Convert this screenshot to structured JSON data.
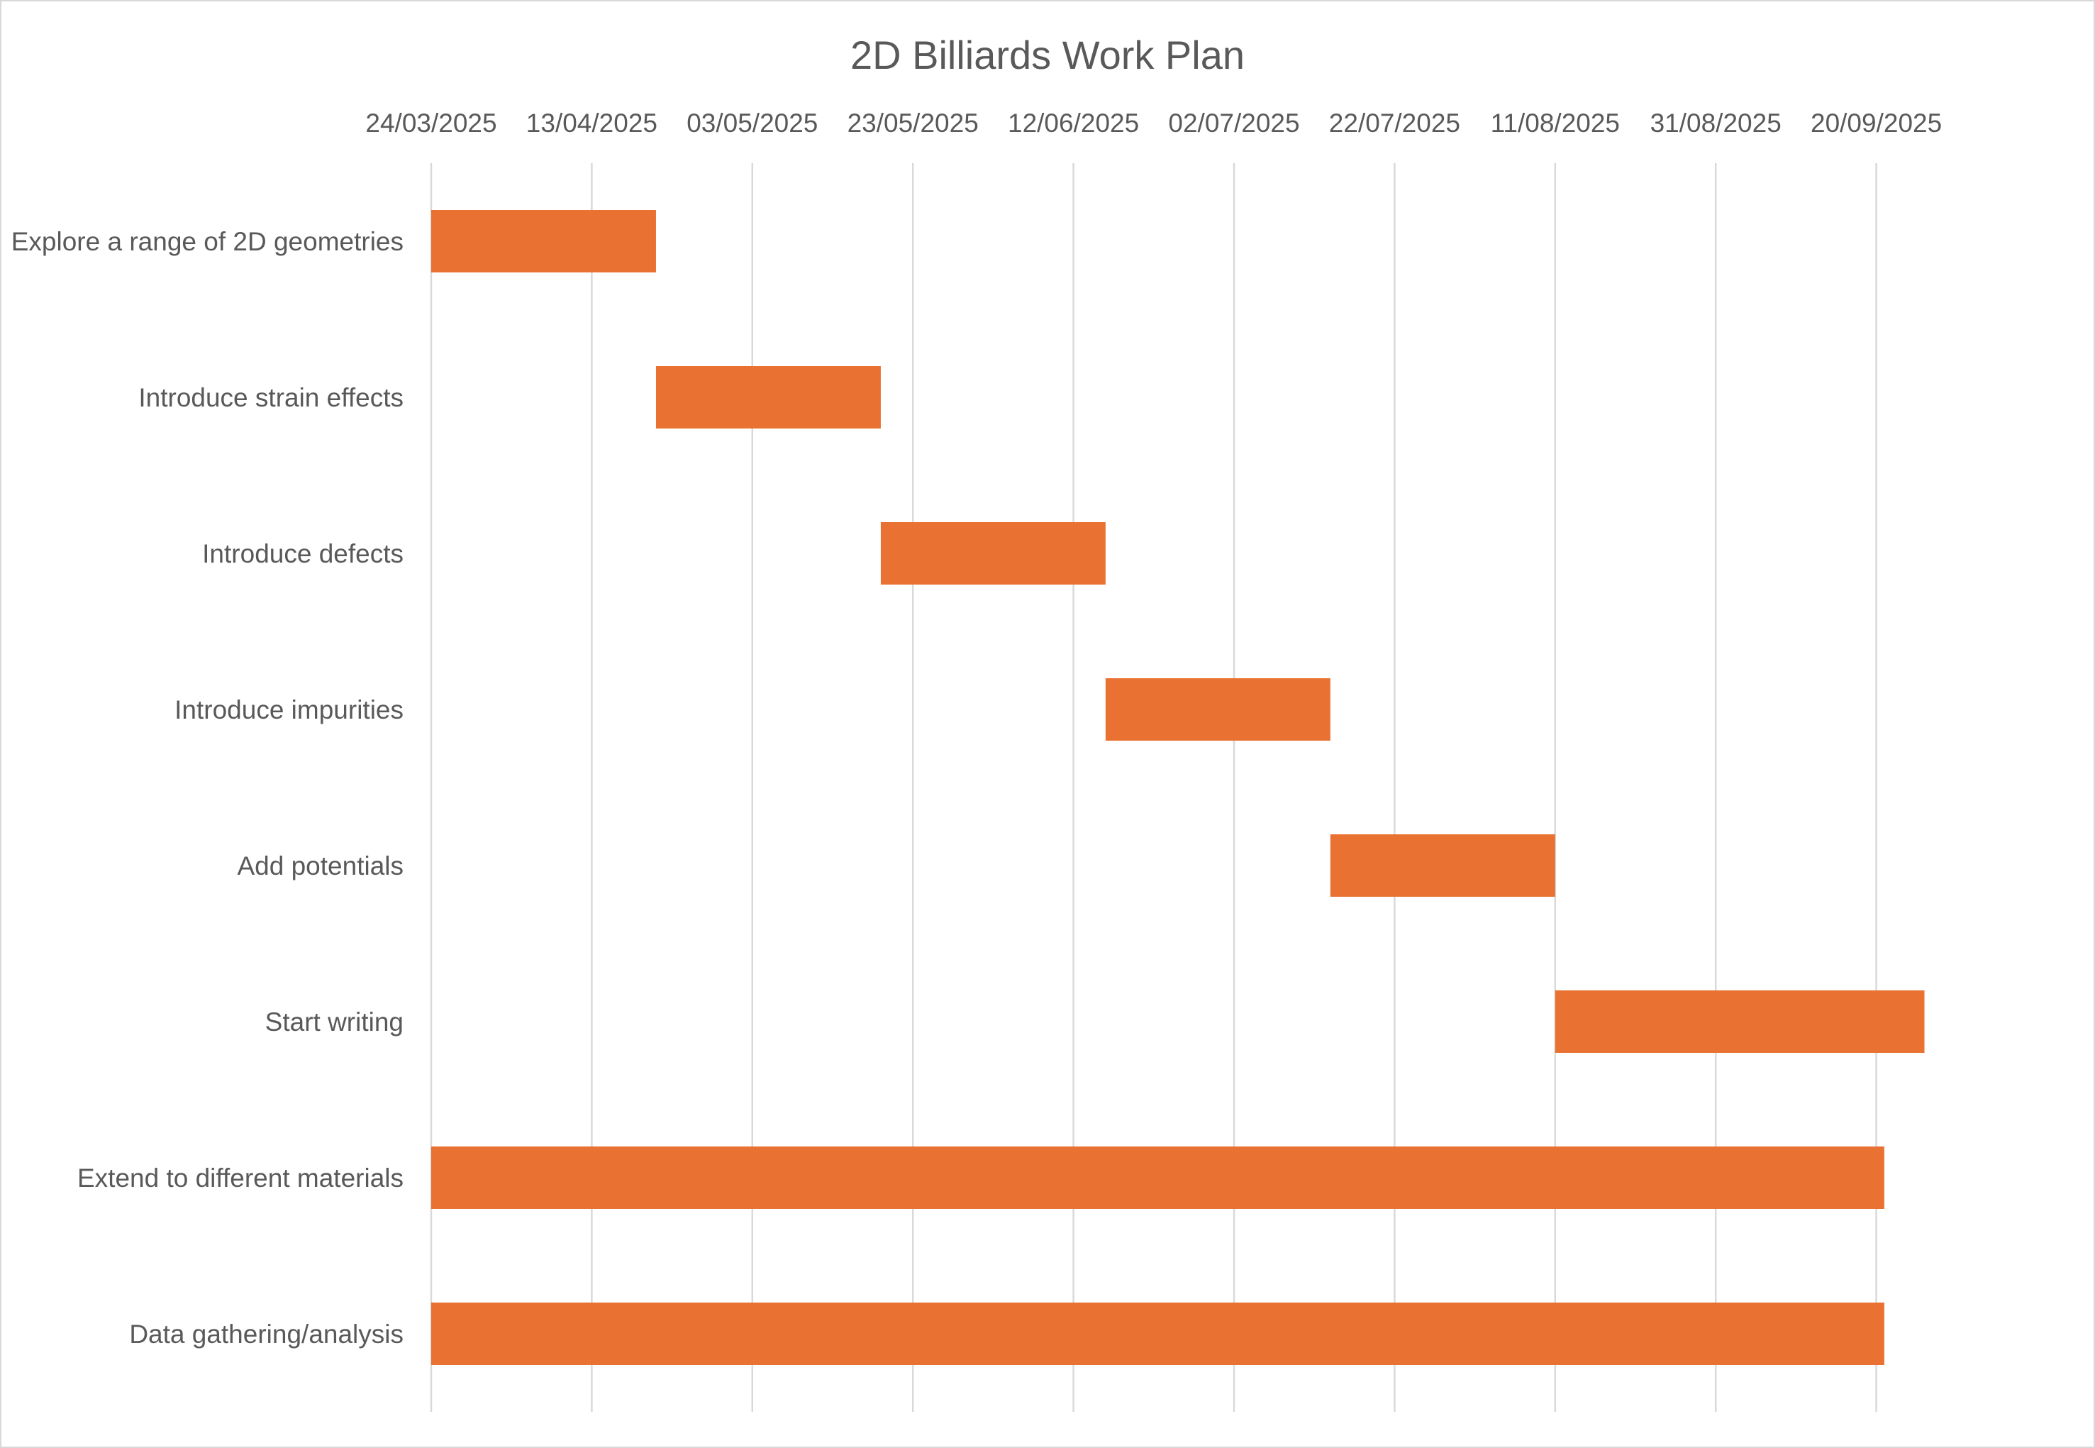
{
  "chart_data": {
    "type": "bar",
    "orientation": "horizontal",
    "title": "2D Billiards Work Plan",
    "x_axis": {
      "position": "top",
      "min": "2025-03-24",
      "max": "2025-10-10",
      "major_unit_days": 20,
      "tick_labels": [
        "24/03/2025",
        "13/04/2025",
        "03/05/2025",
        "23/05/2025",
        "12/06/2025",
        "02/07/2025",
        "22/07/2025",
        "11/08/2025",
        "31/08/2025",
        "20/09/2025"
      ]
    },
    "grid": true,
    "legend": "none",
    "bar_color": "#E97132",
    "tasks": [
      {
        "label": "Explore a range of 2D geometries",
        "start": "2025-03-24",
        "end": "2025-04-21"
      },
      {
        "label": "Introduce strain effects",
        "start": "2025-04-21",
        "end": "2025-05-19"
      },
      {
        "label": "Introduce defects",
        "start": "2025-05-19",
        "end": "2025-06-16"
      },
      {
        "label": "Introduce impurities",
        "start": "2025-06-16",
        "end": "2025-07-14"
      },
      {
        "label": "Add potentials",
        "start": "2025-07-14",
        "end": "2025-08-11"
      },
      {
        "label": "Start writing",
        "start": "2025-08-11",
        "end": "2025-09-26"
      },
      {
        "label": "Extend to different materials",
        "start": "2025-03-24",
        "end": "2025-09-21"
      },
      {
        "label": "Data gathering/analysis",
        "start": "2025-03-24",
        "end": "2025-09-21"
      }
    ]
  }
}
